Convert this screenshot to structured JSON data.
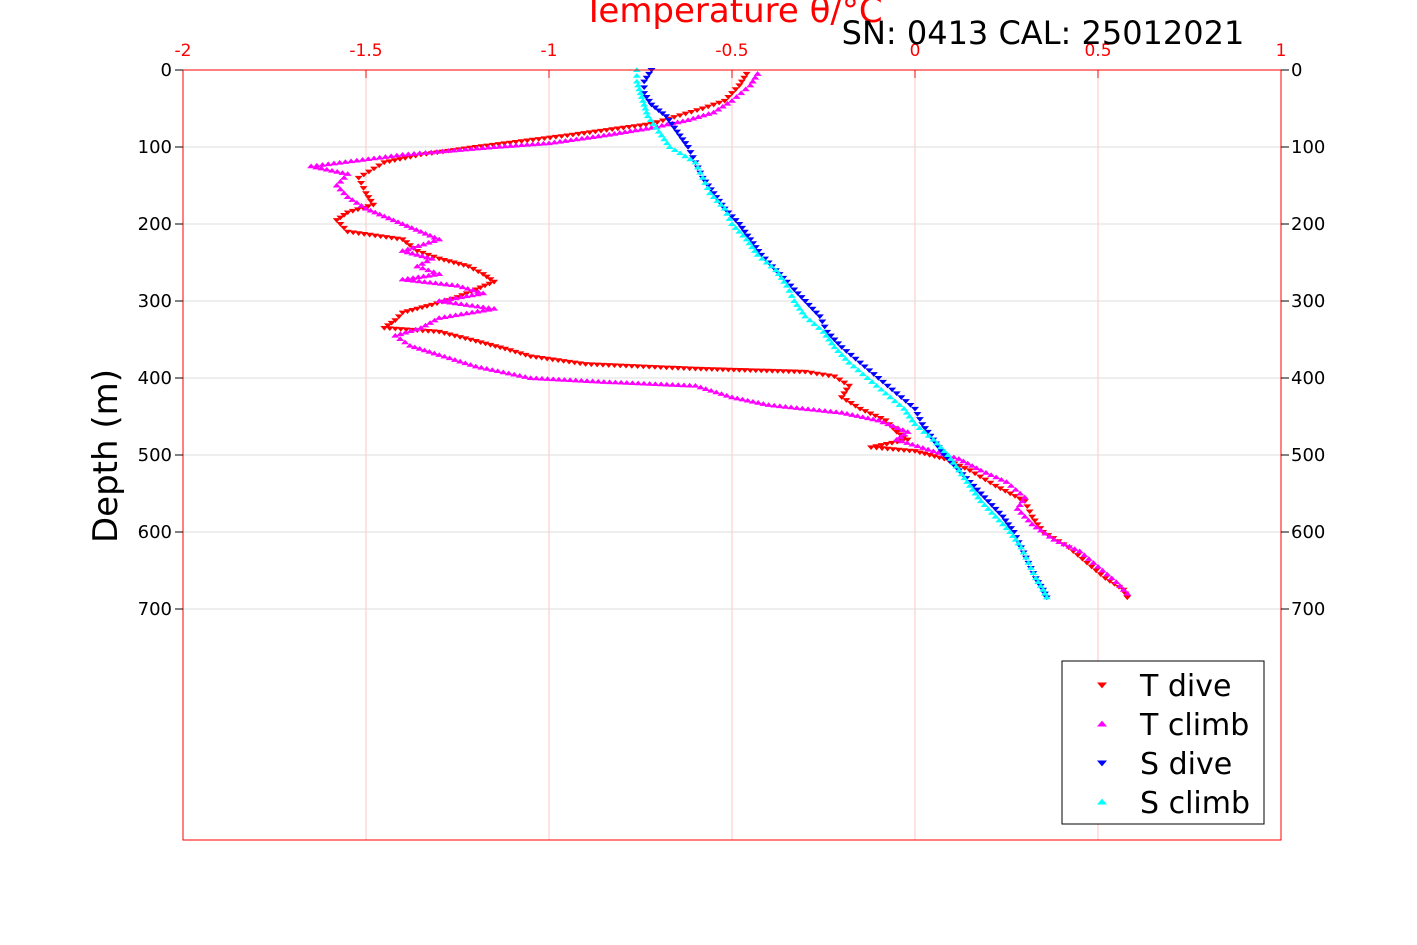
{
  "chart_data": {
    "type": "scatter",
    "title": "SN: 0413  CAL: 25012021",
    "xlabel": "Temperature θ/°C",
    "ylabel": "Depth (m)",
    "xlim": [
      -2,
      1
    ],
    "ylim": [
      1000,
      0
    ],
    "x_ticks": [
      "-2",
      "-1.5",
      "-1",
      "-0.5",
      "0",
      "0.5",
      "1"
    ],
    "y_ticks": [
      "0",
      "100",
      "200",
      "300",
      "400",
      "500",
      "600",
      "700"
    ],
    "grid": true,
    "legend_position": "bottom-right",
    "series": [
      {
        "name": "T dive",
        "color": "#ff0000",
        "marker": "triangle-down",
        "points": [
          [
            -0.46,
            5
          ],
          [
            -0.48,
            20
          ],
          [
            -0.52,
            40
          ],
          [
            -0.58,
            50
          ],
          [
            -0.72,
            70
          ],
          [
            -0.95,
            85
          ],
          [
            -1.2,
            100
          ],
          [
            -1.35,
            110
          ],
          [
            -1.45,
            120
          ],
          [
            -1.52,
            140
          ],
          [
            -1.5,
            160
          ],
          [
            -1.48,
            175
          ],
          [
            -1.55,
            185
          ],
          [
            -1.58,
            195
          ],
          [
            -1.55,
            210
          ],
          [
            -1.4,
            220
          ],
          [
            -1.36,
            235
          ],
          [
            -1.3,
            245
          ],
          [
            -1.22,
            255
          ],
          [
            -1.18,
            265
          ],
          [
            -1.15,
            275
          ],
          [
            -1.2,
            285
          ],
          [
            -1.25,
            295
          ],
          [
            -1.32,
            305
          ],
          [
            -1.4,
            315
          ],
          [
            -1.42,
            325
          ],
          [
            -1.45,
            335
          ],
          [
            -1.3,
            340
          ],
          [
            -1.2,
            352
          ],
          [
            -1.12,
            362
          ],
          [
            -1.05,
            372
          ],
          [
            -0.9,
            382
          ],
          [
            -0.6,
            388
          ],
          [
            -0.45,
            390
          ],
          [
            -0.3,
            392
          ],
          [
            -0.22,
            398
          ],
          [
            -0.18,
            410
          ],
          [
            -0.2,
            425
          ],
          [
            -0.15,
            440
          ],
          [
            -0.08,
            455
          ],
          [
            -0.05,
            470
          ],
          [
            -0.02,
            480
          ],
          [
            -0.12,
            490
          ],
          [
            0.0,
            495
          ],
          [
            0.08,
            505
          ],
          [
            0.15,
            520
          ],
          [
            0.22,
            540
          ],
          [
            0.3,
            560
          ],
          [
            0.32,
            580
          ],
          [
            0.35,
            600
          ],
          [
            0.42,
            620
          ],
          [
            0.47,
            640
          ],
          [
            0.52,
            660
          ],
          [
            0.57,
            675
          ],
          [
            0.58,
            685
          ]
        ]
      },
      {
        "name": "T climb",
        "color": "#ff00ff",
        "marker": "triangle-up",
        "points": [
          [
            -0.43,
            5
          ],
          [
            -0.45,
            20
          ],
          [
            -0.5,
            40
          ],
          [
            -0.55,
            55
          ],
          [
            -0.62,
            65
          ],
          [
            -0.72,
            75
          ],
          [
            -0.85,
            85
          ],
          [
            -1.0,
            95
          ],
          [
            -1.15,
            100
          ],
          [
            -1.4,
            110
          ],
          [
            -1.65,
            125
          ],
          [
            -1.55,
            135
          ],
          [
            -1.58,
            150
          ],
          [
            -1.55,
            165
          ],
          [
            -1.5,
            180
          ],
          [
            -1.45,
            190
          ],
          [
            -1.4,
            200
          ],
          [
            -1.35,
            210
          ],
          [
            -1.3,
            220
          ],
          [
            -1.4,
            235
          ],
          [
            -1.32,
            245
          ],
          [
            -1.36,
            255
          ],
          [
            -1.3,
            265
          ],
          [
            -1.4,
            272
          ],
          [
            -1.25,
            280
          ],
          [
            -1.18,
            290
          ],
          [
            -1.3,
            300
          ],
          [
            -1.15,
            310
          ],
          [
            -1.3,
            322
          ],
          [
            -1.35,
            335
          ],
          [
            -1.42,
            345
          ],
          [
            -1.38,
            358
          ],
          [
            -1.3,
            370
          ],
          [
            -1.2,
            385
          ],
          [
            -1.05,
            400
          ],
          [
            -0.85,
            405
          ],
          [
            -0.6,
            410
          ],
          [
            -0.5,
            425
          ],
          [
            -0.4,
            435
          ],
          [
            -0.2,
            445
          ],
          [
            -0.1,
            455
          ],
          [
            -0.02,
            470
          ],
          [
            -0.05,
            480
          ],
          [
            0.05,
            495
          ],
          [
            0.12,
            505
          ],
          [
            0.18,
            520
          ],
          [
            0.25,
            535
          ],
          [
            0.3,
            555
          ],
          [
            0.28,
            570
          ],
          [
            0.32,
            590
          ],
          [
            0.38,
            610
          ],
          [
            0.45,
            625
          ],
          [
            0.5,
            645
          ],
          [
            0.55,
            665
          ],
          [
            0.58,
            680
          ]
        ]
      },
      {
        "name": "S dive",
        "color": "#0000ff",
        "marker": "triangle-down",
        "points": [
          [
            -0.72,
            0
          ],
          [
            -0.74,
            15
          ],
          [
            -0.74,
            30
          ],
          [
            -0.72,
            45
          ],
          [
            -0.68,
            60
          ],
          [
            -0.65,
            80
          ],
          [
            -0.62,
            100
          ],
          [
            -0.6,
            120
          ],
          [
            -0.58,
            140
          ],
          [
            -0.55,
            160
          ],
          [
            -0.52,
            180
          ],
          [
            -0.48,
            200
          ],
          [
            -0.45,
            220
          ],
          [
            -0.42,
            240
          ],
          [
            -0.38,
            260
          ],
          [
            -0.34,
            280
          ],
          [
            -0.3,
            300
          ],
          [
            -0.26,
            320
          ],
          [
            -0.24,
            340
          ],
          [
            -0.2,
            360
          ],
          [
            -0.15,
            380
          ],
          [
            -0.1,
            400
          ],
          [
            -0.05,
            420
          ],
          [
            0.0,
            440
          ],
          [
            0.02,
            460
          ],
          [
            0.05,
            480
          ],
          [
            0.08,
            500
          ],
          [
            0.12,
            520
          ],
          [
            0.16,
            540
          ],
          [
            0.2,
            560
          ],
          [
            0.24,
            580
          ],
          [
            0.27,
            600
          ],
          [
            0.29,
            620
          ],
          [
            0.31,
            640
          ],
          [
            0.33,
            660
          ],
          [
            0.35,
            675
          ],
          [
            0.36,
            685
          ]
        ]
      },
      {
        "name": "S climb",
        "color": "#00ffff",
        "marker": "triangle-up",
        "points": [
          [
            -0.76,
            0
          ],
          [
            -0.76,
            15
          ],
          [
            -0.75,
            30
          ],
          [
            -0.74,
            45
          ],
          [
            -0.73,
            60
          ],
          [
            -0.7,
            80
          ],
          [
            -0.67,
            100
          ],
          [
            -0.6,
            120
          ],
          [
            -0.58,
            140
          ],
          [
            -0.56,
            160
          ],
          [
            -0.52,
            180
          ],
          [
            -0.5,
            200
          ],
          [
            -0.46,
            220
          ],
          [
            -0.43,
            240
          ],
          [
            -0.38,
            260
          ],
          [
            -0.35,
            280
          ],
          [
            -0.33,
            300
          ],
          [
            -0.3,
            320
          ],
          [
            -0.25,
            340
          ],
          [
            -0.22,
            360
          ],
          [
            -0.18,
            380
          ],
          [
            -0.13,
            400
          ],
          [
            -0.08,
            420
          ],
          [
            -0.03,
            440
          ],
          [
            0.0,
            460
          ],
          [
            0.05,
            480
          ],
          [
            0.09,
            500
          ],
          [
            0.12,
            520
          ],
          [
            0.15,
            540
          ],
          [
            0.18,
            560
          ],
          [
            0.22,
            580
          ],
          [
            0.26,
            600
          ],
          [
            0.29,
            620
          ],
          [
            0.31,
            640
          ],
          [
            0.33,
            660
          ],
          [
            0.35,
            675
          ],
          [
            0.36,
            685
          ]
        ]
      }
    ]
  }
}
